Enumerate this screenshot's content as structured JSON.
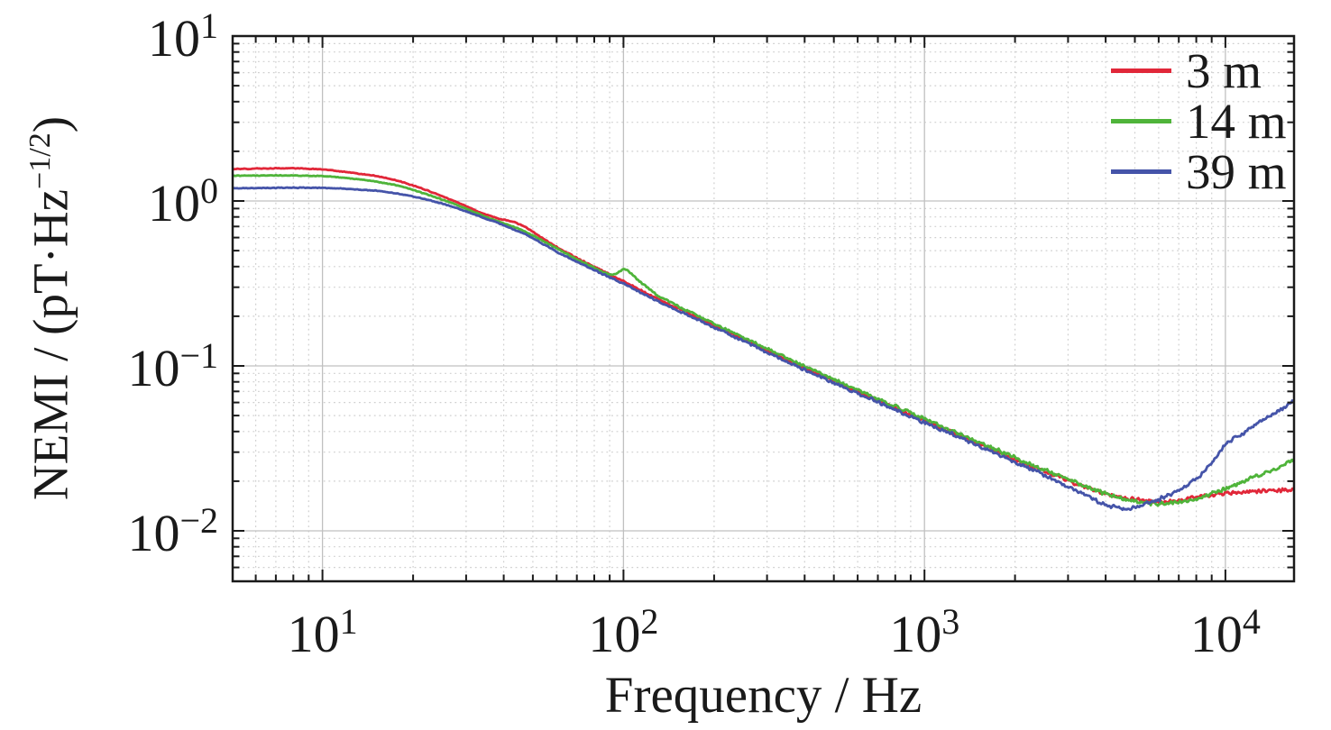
{
  "chart_data": {
    "type": "line",
    "title": "",
    "xlabel": "Frequency / Hz",
    "ylabel_prefix": "NEMI / (pT·Hz",
    "ylabel_sup": "−1/2",
    "ylabel_suffix": ")",
    "x_scale": "log",
    "y_scale": "log",
    "xlim": [
      5.03,
      16900
    ],
    "ylim": [
      0.00494,
      10
    ],
    "grid": {
      "major": true,
      "minor": true
    },
    "x_ticks": [
      {
        "value": 10,
        "base": "10",
        "exp": "1"
      },
      {
        "value": 100,
        "base": "10",
        "exp": "2"
      },
      {
        "value": 1000,
        "base": "10",
        "exp": "3"
      },
      {
        "value": 10000,
        "base": "10",
        "exp": "4"
      }
    ],
    "y_ticks": [
      {
        "value": 10,
        "base": "10",
        "exp": "1"
      },
      {
        "value": 1,
        "base": "10",
        "exp": "0"
      },
      {
        "value": 0.1,
        "base": "10",
        "exp": "−1"
      },
      {
        "value": 0.01,
        "base": "10",
        "exp": "−2"
      }
    ],
    "legend": {
      "position": "top-right"
    },
    "colors": {
      "axis": "#1a1a1a",
      "grid_major": "#c0c0c0",
      "grid_minor": "#cfcfcf",
      "background": "#ffffff"
    },
    "series": [
      {
        "name": "3 m",
        "color": "#e12739",
        "points": [
          [
            5,
            1.56
          ],
          [
            6.5,
            1.575
          ],
          [
            8,
            1.58
          ],
          [
            10,
            1.555
          ],
          [
            12,
            1.5
          ],
          [
            15,
            1.42
          ],
          [
            18,
            1.32
          ],
          [
            22,
            1.17
          ],
          [
            26,
            1.04
          ],
          [
            30,
            0.93
          ],
          [
            34,
            0.84
          ],
          [
            38,
            0.785
          ],
          [
            43,
            0.75
          ],
          [
            47,
            0.7
          ],
          [
            52,
            0.62
          ],
          [
            60,
            0.525
          ],
          [
            70,
            0.45
          ],
          [
            85,
            0.378
          ],
          [
            100,
            0.325
          ],
          [
            130,
            0.255
          ],
          [
            170,
            0.202
          ],
          [
            220,
            0.162
          ],
          [
            300,
            0.124
          ],
          [
            400,
            0.097
          ],
          [
            550,
            0.0748
          ],
          [
            700,
            0.0618
          ],
          [
            900,
            0.0505
          ],
          [
            1200,
            0.0404
          ],
          [
            1600,
            0.0322
          ],
          [
            2100,
            0.0262
          ],
          [
            2700,
            0.0217
          ],
          [
            3300,
            0.0189
          ],
          [
            4000,
            0.0168
          ],
          [
            5000,
            0.0154
          ],
          [
            6000,
            0.015
          ],
          [
            7000,
            0.0152
          ],
          [
            8500,
            0.0162
          ],
          [
            10000,
            0.017
          ],
          [
            12000,
            0.0173
          ],
          [
            14500,
            0.0175
          ],
          [
            16900,
            0.0178
          ]
        ]
      },
      {
        "name": "14 m",
        "color": "#4fb43a",
        "points": [
          [
            5,
            1.42
          ],
          [
            6.5,
            1.43
          ],
          [
            8,
            1.43
          ],
          [
            10,
            1.415
          ],
          [
            12,
            1.38
          ],
          [
            15,
            1.315
          ],
          [
            18,
            1.235
          ],
          [
            22,
            1.105
          ],
          [
            26,
            0.995
          ],
          [
            30,
            0.9
          ],
          [
            34,
            0.815
          ],
          [
            38,
            0.755
          ],
          [
            43,
            0.7
          ],
          [
            47,
            0.655
          ],
          [
            52,
            0.595
          ],
          [
            60,
            0.515
          ],
          [
            70,
            0.443
          ],
          [
            85,
            0.372
          ],
          [
            92,
            0.352
          ],
          [
            96,
            0.368
          ],
          [
            100,
            0.39
          ],
          [
            104,
            0.374
          ],
          [
            110,
            0.34
          ],
          [
            120,
            0.3
          ],
          [
            130,
            0.265
          ],
          [
            170,
            0.208
          ],
          [
            220,
            0.166
          ],
          [
            300,
            0.127
          ],
          [
            400,
            0.0995
          ],
          [
            550,
            0.0765
          ],
          [
            700,
            0.0633
          ],
          [
            900,
            0.0518
          ],
          [
            1200,
            0.0414
          ],
          [
            1600,
            0.033
          ],
          [
            2100,
            0.0268
          ],
          [
            2700,
            0.0221
          ],
          [
            3300,
            0.0192
          ],
          [
            4000,
            0.0168
          ],
          [
            5000,
            0.015
          ],
          [
            6000,
            0.0146
          ],
          [
            7000,
            0.0149
          ],
          [
            8000,
            0.0157
          ],
          [
            9000,
            0.0168
          ],
          [
            10000,
            0.018
          ],
          [
            11500,
            0.0199
          ],
          [
            13000,
            0.0218
          ],
          [
            15000,
            0.0241
          ],
          [
            16900,
            0.0268
          ]
        ]
      },
      {
        "name": "39 m",
        "color": "#4554a9",
        "points": [
          [
            5,
            1.19
          ],
          [
            6.5,
            1.2
          ],
          [
            8,
            1.205
          ],
          [
            10,
            1.2
          ],
          [
            12,
            1.185
          ],
          [
            15,
            1.155
          ],
          [
            18,
            1.105
          ],
          [
            22,
            1.025
          ],
          [
            26,
            0.945
          ],
          [
            30,
            0.865
          ],
          [
            34,
            0.795
          ],
          [
            38,
            0.74
          ],
          [
            43,
            0.675
          ],
          [
            47,
            0.63
          ],
          [
            52,
            0.572
          ],
          [
            60,
            0.492
          ],
          [
            70,
            0.428
          ],
          [
            85,
            0.362
          ],
          [
            100,
            0.315
          ],
          [
            130,
            0.247
          ],
          [
            170,
            0.196
          ],
          [
            220,
            0.158
          ],
          [
            300,
            0.121
          ],
          [
            400,
            0.0945
          ],
          [
            550,
            0.073
          ],
          [
            700,
            0.0603
          ],
          [
            900,
            0.0493
          ],
          [
            1200,
            0.0394
          ],
          [
            1600,
            0.0313
          ],
          [
            2100,
            0.0252
          ],
          [
            2700,
            0.0204
          ],
          [
            3300,
            0.017
          ],
          [
            4000,
            0.0143
          ],
          [
            4600,
            0.0136
          ],
          [
            5200,
            0.0141
          ],
          [
            6000,
            0.0155
          ],
          [
            7000,
            0.0176
          ],
          [
            8000,
            0.0205
          ],
          [
            9000,
            0.0258
          ],
          [
            10000,
            0.0335
          ],
          [
            11600,
            0.0398
          ],
          [
            13000,
            0.0458
          ],
          [
            14500,
            0.0515
          ],
          [
            16000,
            0.0575
          ],
          [
            16900,
            0.0612
          ]
        ]
      }
    ]
  }
}
